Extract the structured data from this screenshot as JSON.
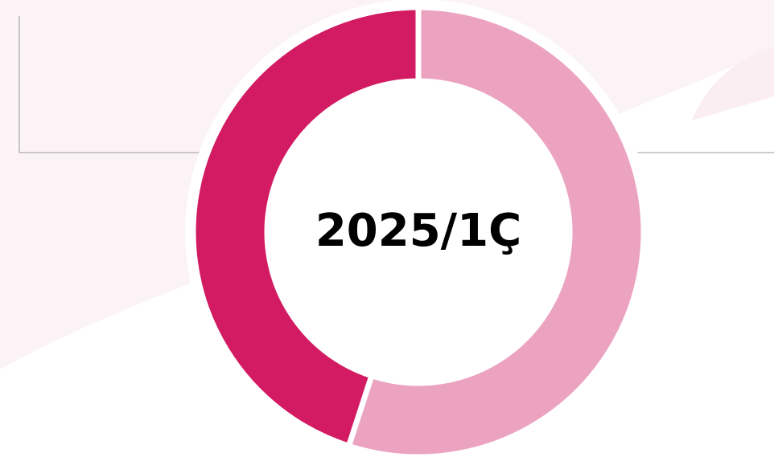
{
  "chart_data": {
    "type": "pie",
    "center_text": "2025/1Ç",
    "values": [
      55,
      45
    ],
    "colors": [
      "#eba3c0",
      "#d31b63"
    ],
    "start_angle": 0,
    "direction": "clockwise",
    "donut": true
  }
}
